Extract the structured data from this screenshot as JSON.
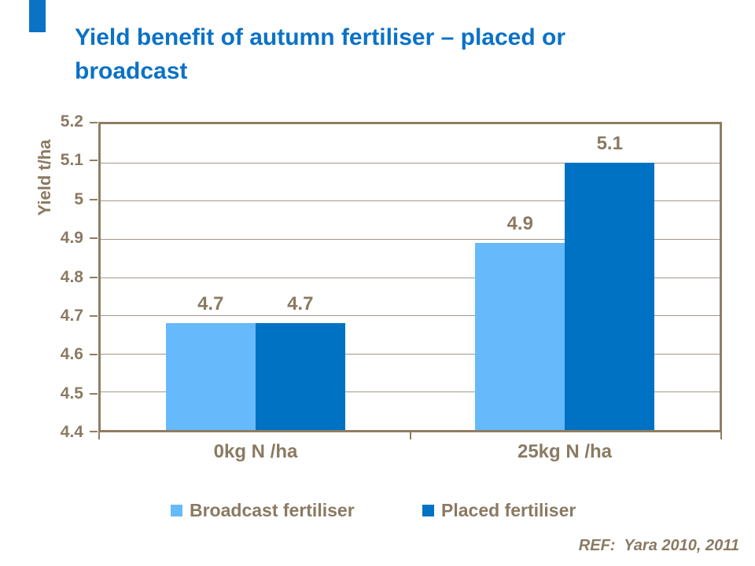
{
  "accent_color": "#0B72C6",
  "slide": {
    "title_line1": "Yield benefit of autumn fertiliser – placed or",
    "title_line2": "broadcast",
    "ref_text": "REF:  Yara 2010, 2011"
  },
  "chart_data": {
    "type": "bar",
    "title": "Yield benefit of autumn fertiliser – placed or broadcast",
    "categories": [
      "0kg N /ha",
      "25kg N /ha"
    ],
    "series": [
      {
        "name": "Broadcast fertiliser",
        "color": "#66BAFB",
        "values": [
          4.68,
          4.89
        ],
        "data_labels": [
          "4.7",
          "4.9"
        ]
      },
      {
        "name": "Placed fertiliser",
        "color": "#0072C3",
        "values": [
          4.68,
          5.1
        ],
        "data_labels": [
          "4.7",
          "5.1"
        ]
      }
    ],
    "xlabel": "",
    "ylabel": "Yield t/ha",
    "ylim": [
      4.4,
      5.2
    ],
    "ytick_step": 0.1,
    "ytick_labels_top_down": [
      "5.2",
      "5.1",
      "5",
      "4.9",
      "4.8",
      "4.7",
      "4.6",
      "4.5",
      "4.4"
    ],
    "grid": true,
    "legend_position": "bottom",
    "text_color": "#8A7A63",
    "frame_color": "#8F7D63",
    "gridline_color": "#A2978A"
  }
}
